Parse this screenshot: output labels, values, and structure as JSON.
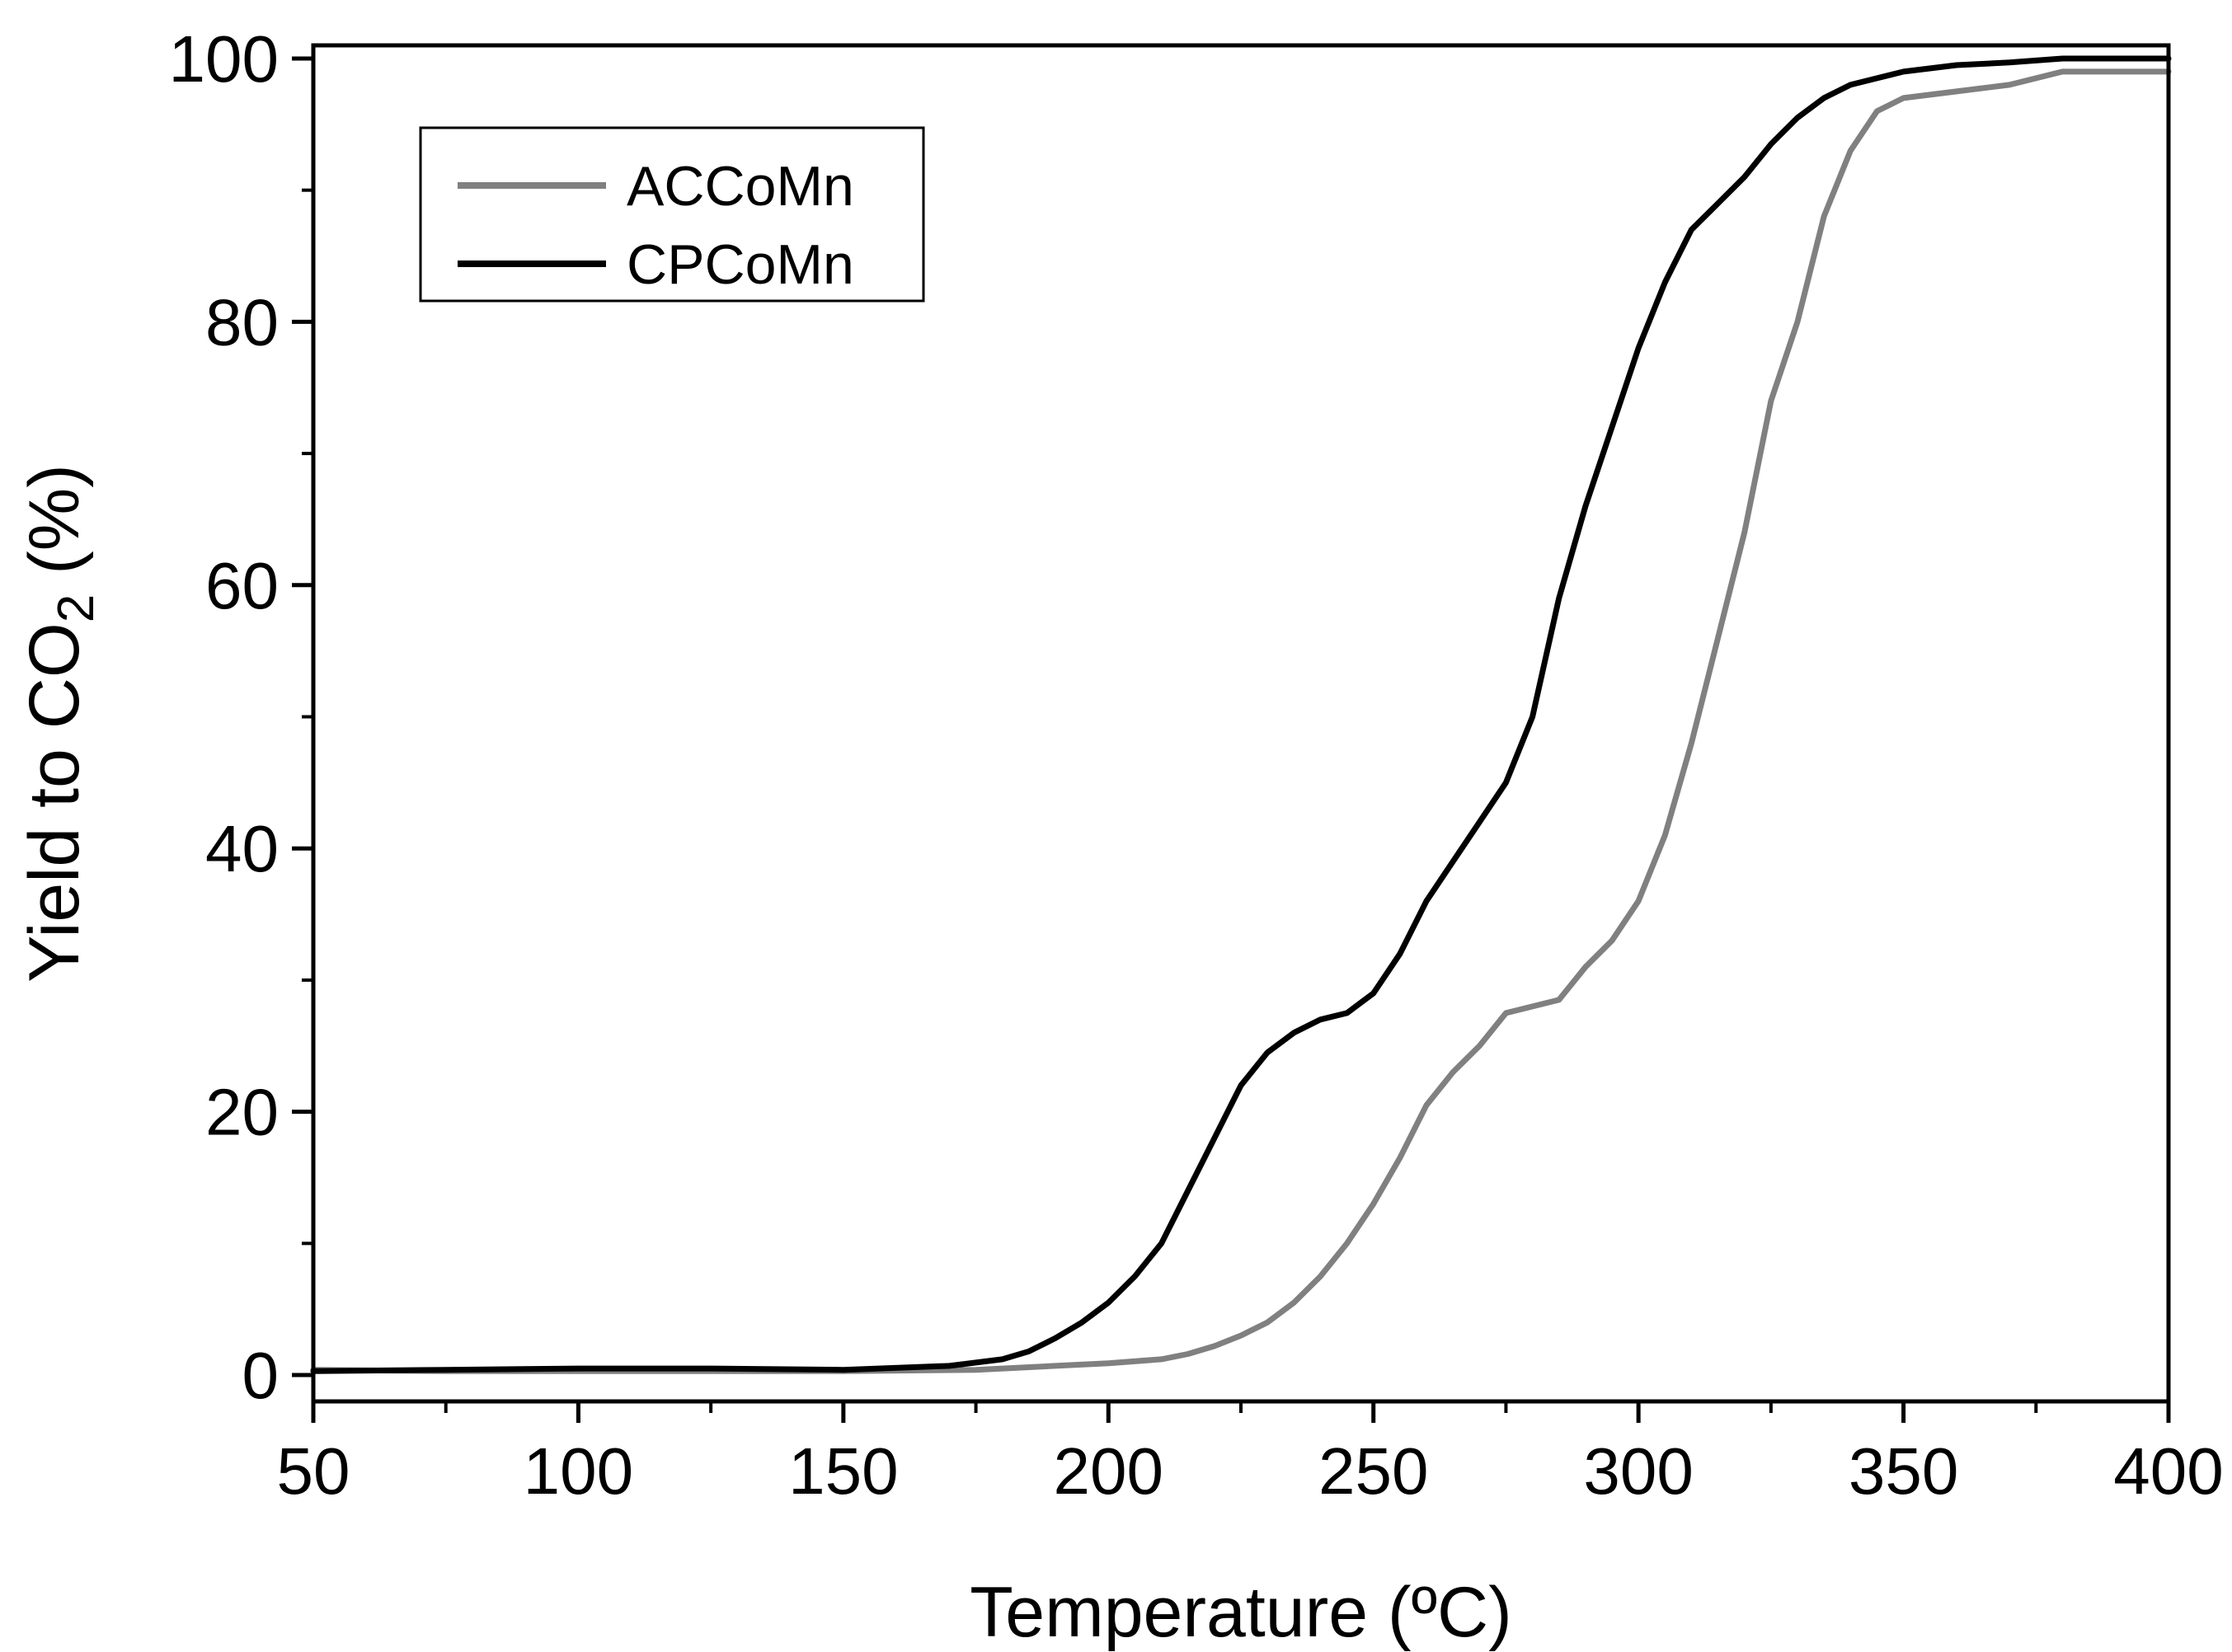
{
  "chart_data": {
    "type": "line",
    "title": "",
    "xlabel": "Temperature (ºC)",
    "ylabel": {
      "main": "Yield to CO",
      "sub": "2",
      "suffix": " (%)"
    },
    "xlim": [
      50,
      400
    ],
    "ylim": [
      -2,
      101
    ],
    "x_ticks": [
      "50",
      "100",
      "150",
      "200",
      "250",
      "300",
      "350",
      "400"
    ],
    "y_ticks": [
      "0",
      "20",
      "40",
      "60",
      "80",
      "100"
    ],
    "grid": false,
    "legend": {
      "placement": "top-left",
      "entries": [
        "ACCoMn",
        "CPCoMn"
      ]
    },
    "series": [
      {
        "name": "ACCoMn",
        "color": "#808080",
        "x": [
          50,
          75,
          100,
          125,
          150,
          175,
          190,
          200,
          210,
          215,
          220,
          225,
          230,
          235,
          240,
          245,
          250,
          255,
          260,
          265,
          270,
          275,
          280,
          285,
          290,
          295,
          300,
          305,
          310,
          315,
          320,
          325,
          330,
          335,
          340,
          345,
          350,
          360,
          370,
          380,
          390,
          400
        ],
        "y": [
          0.4,
          0.3,
          0.3,
          0.3,
          0.3,
          0.4,
          0.7,
          0.9,
          1.2,
          1.6,
          2.2,
          3,
          4,
          5.5,
          7.5,
          10,
          13,
          16.5,
          20.5,
          23,
          25,
          27.5,
          28,
          28.5,
          31,
          33,
          36,
          41,
          48,
          56,
          64,
          74,
          80,
          88,
          93,
          96,
          97,
          97.5,
          98,
          99,
          99,
          99
        ]
      },
      {
        "name": "CPCoMn",
        "color": "#000000",
        "x": [
          50,
          75,
          100,
          125,
          150,
          170,
          180,
          185,
          190,
          195,
          200,
          205,
          210,
          215,
          220,
          225,
          230,
          235,
          240,
          245,
          250,
          255,
          260,
          265,
          270,
          275,
          280,
          285,
          290,
          295,
          300,
          305,
          310,
          315,
          320,
          325,
          330,
          335,
          340,
          345,
          350,
          360,
          370,
          380,
          390,
          400
        ],
        "y": [
          0.3,
          0.4,
          0.5,
          0.5,
          0.4,
          0.7,
          1.2,
          1.8,
          2.8,
          4,
          5.5,
          7.5,
          10,
          14,
          18,
          22,
          24.5,
          26,
          27,
          27.5,
          29,
          32,
          36,
          39,
          42,
          45,
          50,
          59,
          66,
          72,
          78,
          83,
          87,
          89,
          91,
          93.5,
          95.5,
          97,
          98,
          98.5,
          99,
          99.5,
          99.7,
          100,
          100,
          100
        ]
      }
    ]
  }
}
